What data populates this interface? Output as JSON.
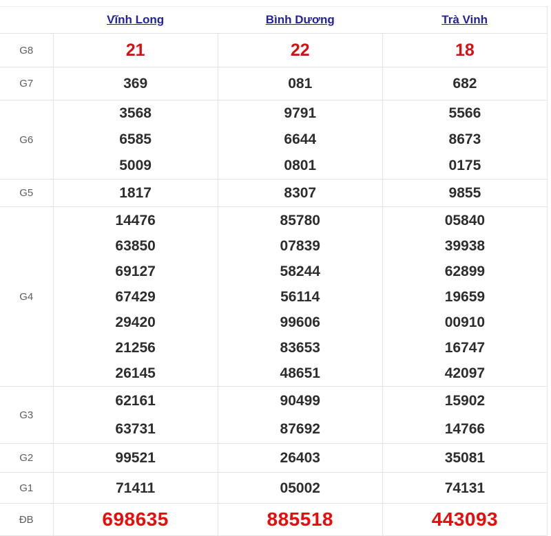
{
  "header": {
    "columns": [
      {
        "label": "Vĩnh Long"
      },
      {
        "label": "Bình Dương"
      },
      {
        "label": "Trà Vinh"
      }
    ]
  },
  "results": {
    "rows": [
      {
        "key": "g8",
        "label": "G8",
        "values": [
          [
            "21"
          ],
          [
            "22"
          ],
          [
            "18"
          ]
        ]
      },
      {
        "key": "g7",
        "label": "G7",
        "values": [
          [
            "369"
          ],
          [
            "081"
          ],
          [
            "682"
          ]
        ]
      },
      {
        "key": "g6",
        "label": "G6",
        "values": [
          [
            "3568",
            "6585",
            "5009"
          ],
          [
            "9791",
            "6644",
            "0801"
          ],
          [
            "5566",
            "8673",
            "0175"
          ]
        ]
      },
      {
        "key": "g5",
        "label": "G5",
        "values": [
          [
            "1817"
          ],
          [
            "8307"
          ],
          [
            "9855"
          ]
        ]
      },
      {
        "key": "g4",
        "label": "G4",
        "values": [
          [
            "14476",
            "63850",
            "69127",
            "67429",
            "29420",
            "21256",
            "26145"
          ],
          [
            "85780",
            "07839",
            "58244",
            "56114",
            "99606",
            "83653",
            "48651"
          ],
          [
            "05840",
            "39938",
            "62899",
            "19659",
            "00910",
            "16747",
            "42097"
          ]
        ]
      },
      {
        "key": "g3",
        "label": "G3",
        "values": [
          [
            "62161",
            "63731"
          ],
          [
            "90499",
            "87692"
          ],
          [
            "15902",
            "14766"
          ]
        ]
      },
      {
        "key": "g2",
        "label": "G2",
        "values": [
          [
            "99521"
          ],
          [
            "26403"
          ],
          [
            "35081"
          ]
        ]
      },
      {
        "key": "g1",
        "label": "G1",
        "values": [
          [
            "71411"
          ],
          [
            "05002"
          ],
          [
            "74131"
          ]
        ]
      },
      {
        "key": "db",
        "label": "ĐB",
        "values": [
          [
            "698635"
          ],
          [
            "885518"
          ],
          [
            "443093"
          ]
        ]
      }
    ]
  },
  "colors": {
    "header_link": "#22229e",
    "g8_value": "#d31212",
    "db_value": "#ea0b0b",
    "value_text": "#2d2d2d",
    "label_text": "#5d5d5d",
    "grid_line": "#e3e3e3",
    "page_bg": "#ffffff"
  }
}
